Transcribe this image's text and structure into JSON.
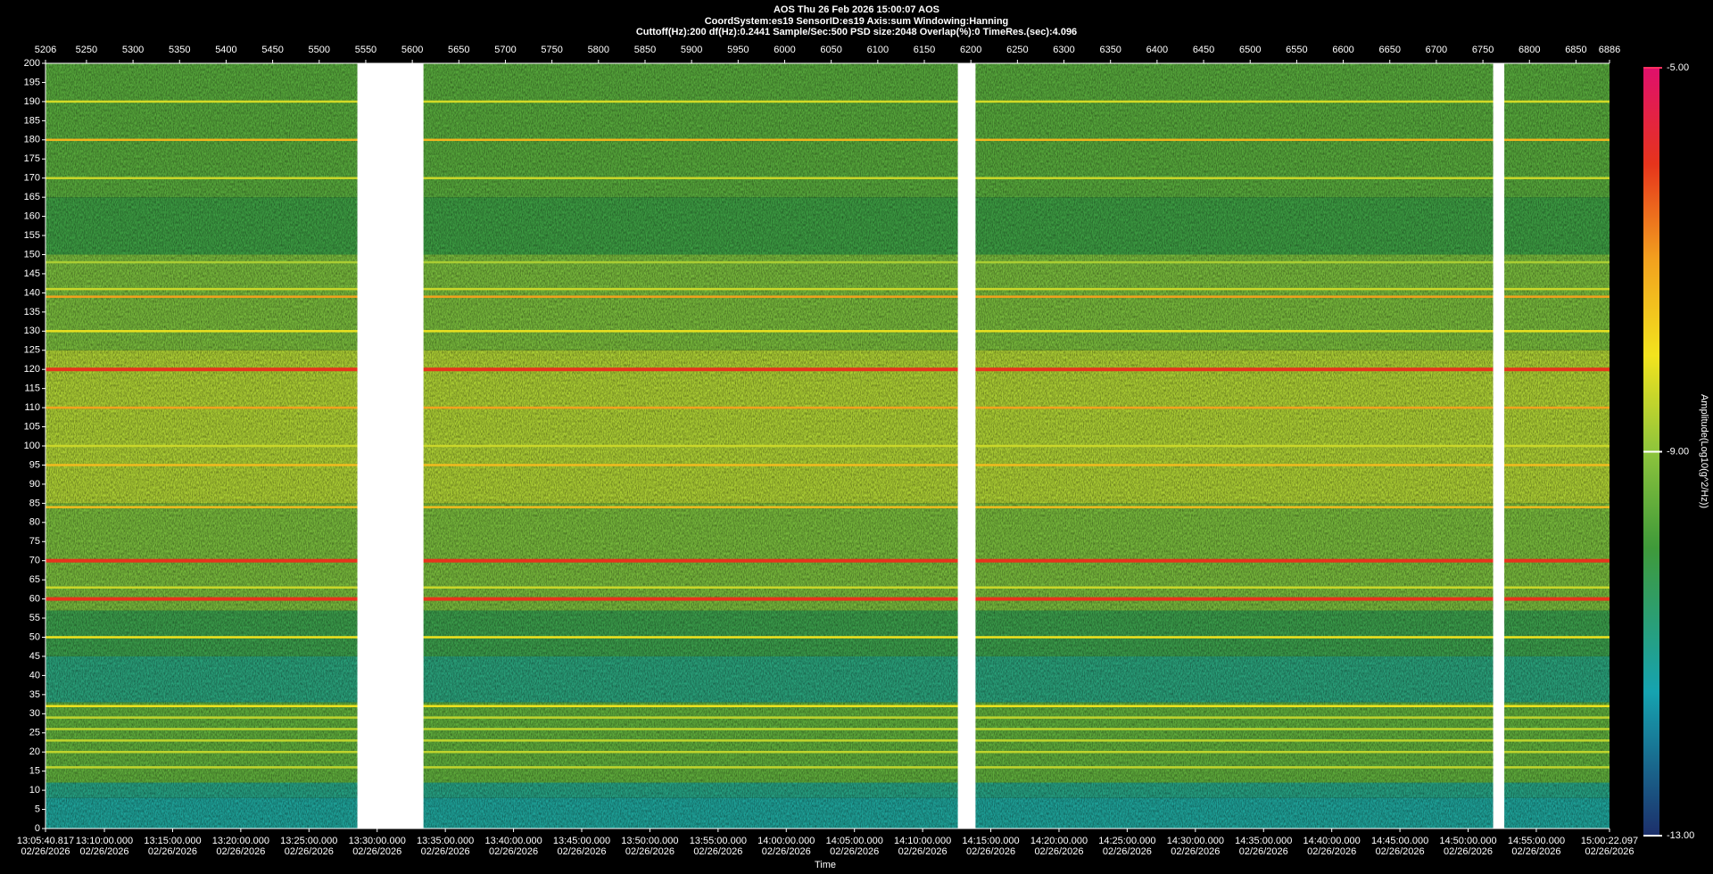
{
  "chart_data": {
    "type": "spectrogram",
    "title": "AOS  Thu 26 Feb 2026 15:00:07  AOS",
    "subtitle": "CoordSystem:es19   SensorID:es19    Axis:sum    Windowing:Hanning",
    "info": "Cuttoff(Hz):200      df(Hz):0.2441      Sample/Sec:500       PSD size:2048        Overlap(%):0         TimeRes.(sec):4.096",
    "x_label": "Time",
    "colorbar_label": "Amplitude(Log10(g^2/Hz))",
    "x2lim": [
      5206,
      6886
    ],
    "x2ticks": [
      5206,
      5250,
      5300,
      5350,
      5400,
      5450,
      5500,
      5550,
      5600,
      5650,
      5700,
      5750,
      5800,
      5850,
      5900,
      5950,
      6000,
      6050,
      6100,
      6150,
      6200,
      6250,
      6300,
      6350,
      6400,
      6450,
      6500,
      6550,
      6600,
      6650,
      6700,
      6750,
      6800,
      6850,
      6886
    ],
    "xlim": [
      "13:05:40.817",
      "15:00:22.097"
    ],
    "xticks": [
      {
        "time": "13:05:40.817",
        "date": "02/26/2026"
      },
      {
        "time": "13:10:00.000",
        "date": "02/26/2026"
      },
      {
        "time": "13:15:00.000",
        "date": "02/26/2026"
      },
      {
        "time": "13:20:00.000",
        "date": "02/26/2026"
      },
      {
        "time": "13:25:00.000",
        "date": "02/26/2026"
      },
      {
        "time": "13:30:00.000",
        "date": "02/26/2026"
      },
      {
        "time": "13:35:00.000",
        "date": "02/26/2026"
      },
      {
        "time": "13:40:00.000",
        "date": "02/26/2026"
      },
      {
        "time": "13:45:00.000",
        "date": "02/26/2026"
      },
      {
        "time": "13:50:00.000",
        "date": "02/26/2026"
      },
      {
        "time": "13:55:00.000",
        "date": "02/26/2026"
      },
      {
        "time": "14:00:00.000",
        "date": "02/26/2026"
      },
      {
        "time": "14:05:00.000",
        "date": "02/26/2026"
      },
      {
        "time": "14:10:00.000",
        "date": "02/26/2026"
      },
      {
        "time": "14:15:00.000",
        "date": "02/26/2026"
      },
      {
        "time": "14:20:00.000",
        "date": "02/26/2026"
      },
      {
        "time": "14:25:00.000",
        "date": "02/26/2026"
      },
      {
        "time": "14:30:00.000",
        "date": "02/26/2026"
      },
      {
        "time": "14:35:00.000",
        "date": "02/26/2026"
      },
      {
        "time": "14:40:00.000",
        "date": "02/26/2026"
      },
      {
        "time": "14:45:00.000",
        "date": "02/26/2026"
      },
      {
        "time": "14:50:00.000",
        "date": "02/26/2026"
      },
      {
        "time": "14:55:00.000",
        "date": "02/26/2026"
      },
      {
        "time": "15:00:22.097",
        "date": "02/26/2026"
      }
    ],
    "ylim": [
      0,
      200
    ],
    "yticks": [
      0,
      5,
      10,
      15,
      20,
      25,
      30,
      35,
      40,
      45,
      50,
      55,
      60,
      65,
      70,
      75,
      80,
      85,
      90,
      95,
      100,
      105,
      110,
      115,
      120,
      125,
      130,
      135,
      140,
      145,
      150,
      155,
      160,
      165,
      170,
      175,
      180,
      185,
      190,
      195,
      200
    ],
    "clim": [
      -13,
      -5
    ],
    "cticks": [
      {
        "value": -5,
        "label": "-5.00"
      },
      {
        "value": -9,
        "label": "-9.00"
      },
      {
        "value": -13,
        "label": "-13.00"
      }
    ],
    "colorscale": [
      {
        "value": -13,
        "color": "#1c2f6b"
      },
      {
        "value": -11.5,
        "color": "#16a3b0"
      },
      {
        "value": -10,
        "color": "#3f9a3a"
      },
      {
        "value": -9,
        "color": "#8dc43c"
      },
      {
        "value": -8,
        "color": "#f2e31e"
      },
      {
        "value": -7,
        "color": "#f2a11e"
      },
      {
        "value": -6,
        "color": "#e6341c"
      },
      {
        "value": -5,
        "color": "#e0106c"
      }
    ],
    "bands": [
      [
        0,
        8,
        -11.2
      ],
      [
        8,
        12,
        -10.9
      ],
      [
        12,
        33,
        -9.6
      ],
      [
        33,
        45,
        -10.8
      ],
      [
        45,
        57,
        -10.2
      ],
      [
        57,
        85,
        -9.3
      ],
      [
        85,
        125,
        -8.7
      ],
      [
        125,
        150,
        -9.3
      ],
      [
        150,
        165,
        -10.1
      ],
      [
        165,
        200,
        -9.7
      ]
    ],
    "lines": [
      [
        190,
        -8.3
      ],
      [
        180,
        -7.3
      ],
      [
        170,
        -8.4
      ],
      [
        148,
        -8.7
      ],
      [
        141,
        -8.4
      ],
      [
        139,
        -7.0
      ],
      [
        130,
        -8.1
      ],
      [
        120,
        -6.0
      ],
      [
        110,
        -7.0
      ],
      [
        100,
        -8.4
      ],
      [
        95,
        -7.4
      ],
      [
        84,
        -7.4
      ],
      [
        70,
        -6.0
      ],
      [
        63,
        -8.4
      ],
      [
        60,
        -6.0
      ],
      [
        50,
        -8.0
      ],
      [
        32,
        -8.0
      ],
      [
        29,
        -8.5
      ],
      [
        26,
        -8.5
      ],
      [
        23,
        -8.5
      ],
      [
        20,
        -8.5
      ],
      [
        16,
        -8.5
      ]
    ],
    "gaps": [
      [
        5541,
        5612
      ],
      [
        6186,
        6205
      ],
      [
        6761,
        6773
      ]
    ]
  }
}
